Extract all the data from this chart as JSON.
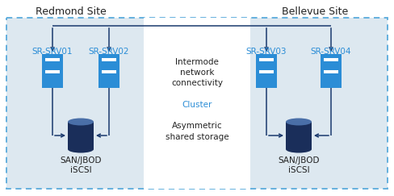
{
  "white_bg": "#ffffff",
  "server_color": "#2b8dd6",
  "storage_color": "#1a2e5a",
  "storage_top_color": "#4a6fa8",
  "arrow_color": "#1a3a6e",
  "dashed_border_color": "#5aabdc",
  "site_bg": "#dde8f0",
  "center_bg": "#ffffff",
  "text_dark": "#222222",
  "redmond_site": "Redmond Site",
  "bellevue_site": "Bellevue Site",
  "srv01": "SR-SRV01",
  "srv02": "SR-SRV02",
  "srv03": "SR-SRV03",
  "srv04": "SR-SRV04",
  "intermode_text": "Intermode\nnetwork\nconnectivity",
  "cluster_text": "Cluster",
  "asymmetric_text": "Asymmetric\nshared storage",
  "san_text": "SAN/JBOD\niSCSI",
  "title_fontsize": 9,
  "label_fontsize": 7.5,
  "small_fontsize": 7.5,
  "srv_label_color": "#2b8dd6"
}
